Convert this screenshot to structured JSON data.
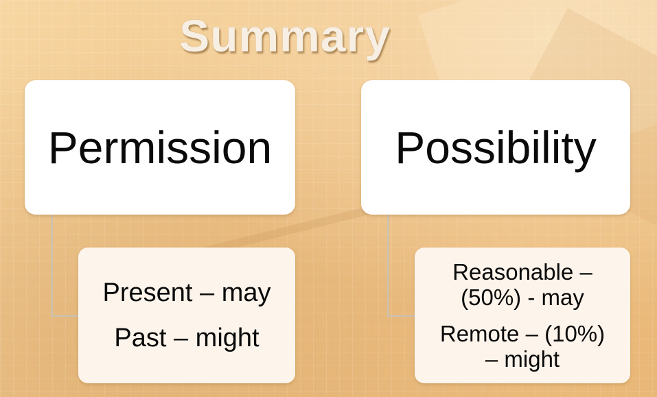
{
  "title": "Summary",
  "left": {
    "heading": "Permission",
    "lines": [
      "Present – may",
      "Past – might"
    ]
  },
  "right": {
    "heading": "Possibility",
    "items": [
      {
        "line1": "Reasonable –",
        "line2": "(50%) - may"
      },
      {
        "line1": "Remote – (10%)",
        "line2": "– might"
      }
    ]
  },
  "colors": {
    "background": "#f2c98c",
    "box": "#ffffff",
    "sub_box": "#fdf5ec",
    "connector": "#c8c2b8",
    "title": "#f7efe3"
  }
}
